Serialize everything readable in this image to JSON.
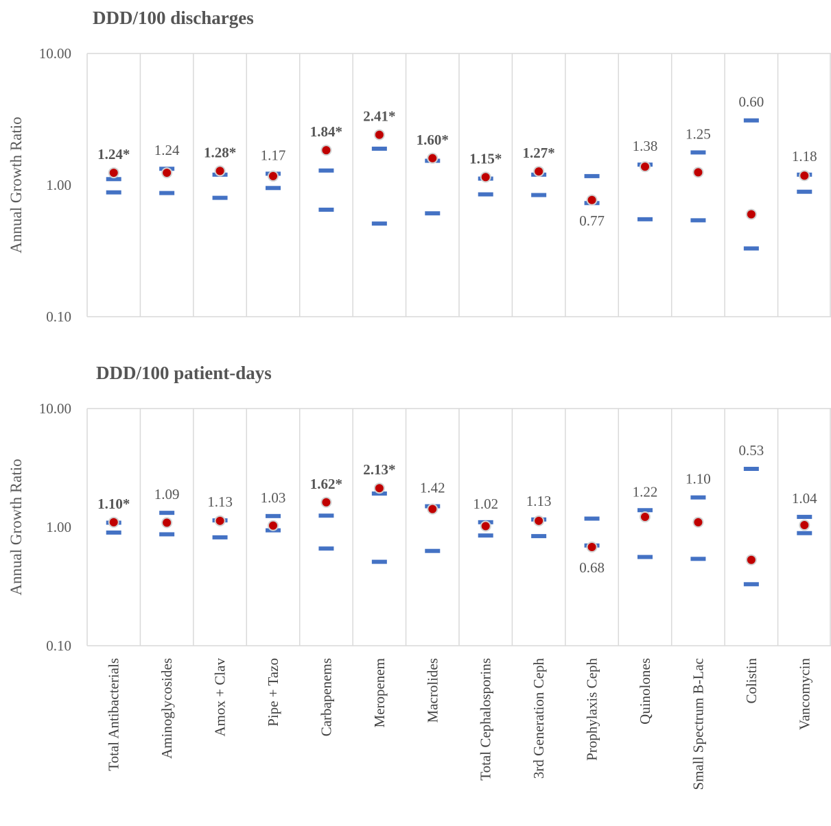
{
  "chart_data": [
    {
      "type": "scatter",
      "title": "DDD/100 discharges",
      "ylabel": "Annual Growth Ratio",
      "yscale": "log",
      "ylim": [
        0.1,
        10
      ],
      "yticks": [
        "10.00",
        "1.00",
        "0.10"
      ],
      "grid": "vertical category separators",
      "legend": "none",
      "categories": [
        "Total Antibacterials",
        "Aminoglycosides",
        "Amox + Clav",
        "Pipe + Tazo",
        "Carbapenems",
        "Meropenem",
        "Macrolides",
        "Total Cephalosporins",
        "3rd Generation Ceph",
        "Prophylaxis Ceph",
        "Quinolones",
        "Small Spectrum B-Lac",
        "Colistin",
        "Vancomycin"
      ],
      "values": [
        1.24,
        1.24,
        1.28,
        1.17,
        1.84,
        2.41,
        1.6,
        1.15,
        1.27,
        0.77,
        1.38,
        1.25,
        0.6,
        1.18
      ],
      "labels": [
        "1.24*",
        "1.24",
        "1.28*",
        "1.17",
        "1.84*",
        "2.41*",
        "1.60*",
        "1.15*",
        "1.27*",
        "0.77",
        "1.38",
        "1.25",
        "0.60",
        "1.18"
      ],
      "label_bold": [
        true,
        false,
        true,
        false,
        true,
        true,
        true,
        true,
        true,
        false,
        false,
        false,
        false,
        false
      ],
      "label_below": [
        false,
        false,
        false,
        false,
        false,
        false,
        false,
        false,
        false,
        true,
        false,
        false,
        false,
        false
      ],
      "ci_low": [
        0.88,
        0.87,
        0.8,
        0.95,
        0.65,
        0.51,
        0.61,
        0.85,
        0.84,
        0.73,
        0.55,
        0.54,
        0.33,
        0.89
      ],
      "ci_high": [
        1.11,
        1.33,
        1.2,
        1.22,
        1.29,
        1.89,
        1.53,
        1.12,
        1.2,
        1.17,
        1.43,
        1.77,
        3.1,
        1.2
      ],
      "colors": {
        "point": "#c00000",
        "interval": "#4472c4",
        "grid": "#d9d9d9"
      }
    },
    {
      "type": "scatter",
      "title": "DDD/100 patient-days",
      "ylabel": "Annual Growth Ratio",
      "yscale": "log",
      "ylim": [
        0.1,
        10
      ],
      "yticks": [
        "10.00",
        "1.00",
        "0.10"
      ],
      "grid": "vertical category separators",
      "legend": "none",
      "categories": [
        "Total Antibacterials",
        "Aminoglycosides",
        "Amox + Clav",
        "Pipe + Tazo",
        "Carbapenems",
        "Meropenem",
        "Macrolides",
        "Total Cephalosporins",
        "3rd Generation Ceph",
        "Prophylaxis Ceph",
        "Quinolones",
        "Small Spectrum B-Lac",
        "Colistin",
        "Vancomycin"
      ],
      "values": [
        1.1,
        1.09,
        1.13,
        1.03,
        1.62,
        2.13,
        1.42,
        1.02,
        1.13,
        0.68,
        1.22,
        1.1,
        0.53,
        1.04
      ],
      "labels": [
        "1.10*",
        "1.09",
        "1.13",
        "1.03",
        "1.62*",
        "2.13*",
        "1.42",
        "1.02",
        "1.13",
        "0.68",
        "1.22",
        "1.10",
        "0.53",
        "1.04"
      ],
      "label_bold": [
        true,
        false,
        false,
        false,
        true,
        true,
        false,
        false,
        false,
        false,
        false,
        false,
        false,
        false
      ],
      "label_below": [
        false,
        false,
        false,
        false,
        false,
        false,
        false,
        false,
        false,
        true,
        false,
        false,
        false,
        false
      ],
      "ci_low": [
        0.9,
        0.87,
        0.82,
        0.94,
        0.66,
        0.51,
        0.63,
        0.85,
        0.84,
        0.7,
        0.56,
        0.54,
        0.33,
        0.89
      ],
      "ci_high": [
        1.09,
        1.32,
        1.14,
        1.24,
        1.25,
        1.92,
        1.5,
        1.1,
        1.16,
        1.18,
        1.39,
        1.78,
        3.1,
        1.22
      ],
      "colors": {
        "point": "#c00000",
        "interval": "#4472c4",
        "grid": "#d9d9d9"
      }
    }
  ]
}
